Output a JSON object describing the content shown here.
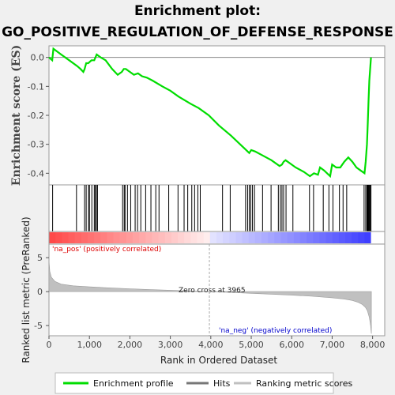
{
  "title_line1": "Enrichment plot:",
  "title_line2": "GO_POSITIVE_REGULATION_OF_DEFENSE_RESPONSE",
  "panels": {
    "es_ylabel": "Enrichment score (ES)",
    "metric_ylabel": "Ranked list metric (PreRanked)",
    "xlabel": "Rank in Ordered Dataset",
    "pos_label": "'na_pos' (positively correlated)",
    "neg_label": "'na_neg' (negatively correlated)",
    "zero_cross": "Zero cross at 3965"
  },
  "legend": {
    "enrichment": "Enrichment profile",
    "hits": "Hits",
    "ranking": "Ranking metric scores"
  },
  "colors": {
    "enrichment": "#00dd00",
    "hits": "#000000",
    "ranking": "#c0c0c0",
    "pos_band": "#ff4c4c",
    "neg_band": "#3d3dff"
  },
  "chart_data": [
    {
      "type": "line",
      "name": "enrichment-score",
      "x": [
        0,
        80,
        110,
        300,
        500,
        700,
        780,
        850,
        880,
        920,
        970,
        1050,
        1120,
        1180,
        1280,
        1400,
        1560,
        1700,
        1800,
        1850,
        1900,
        2000,
        2100,
        2200,
        2300,
        2420,
        2560,
        2800,
        3000,
        3200,
        3500,
        3700,
        3950,
        4200,
        4500,
        4800,
        4950,
        5000,
        5100,
        5300,
        5500,
        5700,
        5760,
        5800,
        5850,
        5950,
        6100,
        6300,
        6450,
        6550,
        6650,
        6700,
        6800,
        6950,
        7000,
        7100,
        7200,
        7300,
        7400,
        7500,
        7600,
        7700,
        7800,
        7830,
        7860,
        7880,
        7900,
        7920,
        7960
      ],
      "y": [
        0.0,
        -0.01,
        0.03,
        0.01,
        -0.01,
        -0.03,
        -0.04,
        -0.05,
        -0.04,
        -0.02,
        -0.02,
        -0.01,
        -0.01,
        0.01,
        0.0,
        -0.01,
        -0.04,
        -0.06,
        -0.05,
        -0.04,
        -0.04,
        -0.05,
        -0.06,
        -0.055,
        -0.065,
        -0.07,
        -0.08,
        -0.1,
        -0.115,
        -0.135,
        -0.16,
        -0.175,
        -0.2,
        -0.235,
        -0.27,
        -0.31,
        -0.33,
        -0.32,
        -0.325,
        -0.34,
        -0.355,
        -0.375,
        -0.37,
        -0.36,
        -0.355,
        -0.365,
        -0.38,
        -0.395,
        -0.41,
        -0.4,
        -0.405,
        -0.38,
        -0.39,
        -0.41,
        -0.37,
        -0.38,
        -0.38,
        -0.36,
        -0.345,
        -0.36,
        -0.38,
        -0.39,
        -0.4,
        -0.36,
        -0.3,
        -0.23,
        -0.15,
        -0.08,
        0.0
      ],
      "ylim": [
        -0.44,
        0.04
      ],
      "xlim": [
        0,
        8300
      ],
      "yticks": [
        0.0,
        -0.1,
        -0.2,
        -0.3,
        -0.4
      ],
      "ytick_labels": [
        "0.0",
        "-0.1",
        "-0.2",
        "-0.3",
        "-0.4"
      ]
    },
    {
      "type": "scatter",
      "name": "hits",
      "x": [
        90,
        680,
        880,
        920,
        980,
        1000,
        1060,
        1120,
        1150,
        1170,
        1200,
        1820,
        1860,
        1880,
        1940,
        2020,
        2130,
        2190,
        2270,
        2390,
        2520,
        2640,
        2720,
        2960,
        3190,
        3340,
        3430,
        3530,
        3600,
        3680,
        3740,
        4290,
        4480,
        4860,
        4910,
        4950,
        4990,
        5030,
        5080,
        5280,
        5490,
        5670,
        5720,
        5760,
        5800,
        5860,
        6030,
        6440,
        6540,
        6780,
        6920,
        7020,
        7180,
        7270,
        7360,
        7790,
        7830,
        7860,
        7880,
        7900,
        7920,
        7940,
        7960
      ]
    },
    {
      "type": "area",
      "name": "ranking-metric",
      "x": [
        0,
        20,
        60,
        150,
        300,
        600,
        1000,
        1500,
        2000,
        2500,
        3000,
        3500,
        3965,
        4500,
        5000,
        5500,
        6000,
        6500,
        7000,
        7300,
        7500,
        7650,
        7750,
        7820,
        7870,
        7920,
        7950,
        7970
      ],
      "y": [
        4.6,
        3.0,
        2.1,
        1.5,
        1.1,
        0.85,
        0.7,
        0.55,
        0.42,
        0.3,
        0.2,
        0.1,
        0.0,
        -0.12,
        -0.25,
        -0.38,
        -0.52,
        -0.68,
        -0.9,
        -1.1,
        -1.3,
        -1.6,
        -1.9,
        -2.3,
        -2.8,
        -3.8,
        -5.0,
        -6.2
      ],
      "ylim": [
        -6.5,
        7.0
      ],
      "yticks": [
        5,
        0,
        -5
      ],
      "ytick_labels": [
        "5",
        "0",
        "-5"
      ],
      "xticks": [
        0,
        1000,
        2000,
        3000,
        4000,
        5000,
        6000,
        7000,
        8000
      ],
      "xtick_labels": [
        "0",
        "1,000",
        "2,000",
        "3,000",
        "4,000",
        "5,000",
        "6,000",
        "7,000",
        "8,000"
      ]
    }
  ]
}
